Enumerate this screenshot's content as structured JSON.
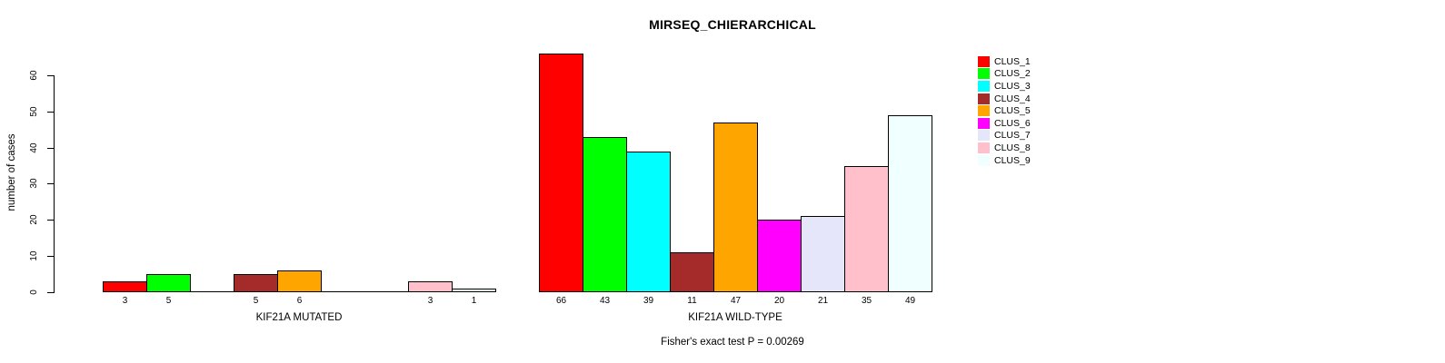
{
  "chart_data": {
    "type": "bar",
    "title": "MIRSEQ_CHIERARCHICAL",
    "xlabel": "",
    "ylabel": "number of cases",
    "ylim": [
      0,
      60
    ],
    "yticks": [
      0,
      10,
      20,
      30,
      40,
      50,
      60
    ],
    "grid": false,
    "legend_position": "right",
    "series": [
      "CLUS_1",
      "CLUS_2",
      "CLUS_3",
      "CLUS_4",
      "CLUS_5",
      "CLUS_6",
      "CLUS_7",
      "CLUS_8",
      "CLUS_9"
    ],
    "series_colors": [
      "#FF0000",
      "#00FF00",
      "#00FFFF",
      "#A52A2A",
      "#FFA500",
      "#FF00FF",
      "#E6E6FA",
      "#FFC0CB",
      "#F0FFFF"
    ],
    "groups": [
      {
        "label": "KIF21A MUTATED",
        "values": [
          3,
          5,
          0,
          5,
          6,
          0,
          0,
          3,
          1
        ]
      },
      {
        "label": "KIF21A WILD-TYPE",
        "values": [
          66,
          43,
          39,
          11,
          47,
          20,
          21,
          35,
          49
        ]
      }
    ],
    "bar_value_labels": {
      "KIF21A MUTATED": [
        "3",
        "5",
        "",
        "5",
        "6",
        "",
        "",
        "3",
        "1"
      ],
      "KIF21A WILD-TYPE": [
        "66",
        "43",
        "39",
        "11",
        "47",
        "20",
        "21",
        "35",
        "49"
      ]
    },
    "annotation": "Fisher's exact test P = 0.00269"
  },
  "legend": {
    "entries": [
      {
        "label": "CLUS_1",
        "color": "#FF0000"
      },
      {
        "label": "CLUS_2",
        "color": "#00FF00"
      },
      {
        "label": "CLUS_3",
        "color": "#00FFFF"
      },
      {
        "label": "CLUS_4",
        "color": "#A52A2A"
      },
      {
        "label": "CLUS_5",
        "color": "#FFA500"
      },
      {
        "label": "CLUS_6",
        "color": "#FF00FF"
      },
      {
        "label": "CLUS_7",
        "color": "#E6E6FA"
      },
      {
        "label": "CLUS_8",
        "color": "#FFC0CB"
      },
      {
        "label": "CLUS_9",
        "color": "#F0FFFF"
      }
    ]
  }
}
